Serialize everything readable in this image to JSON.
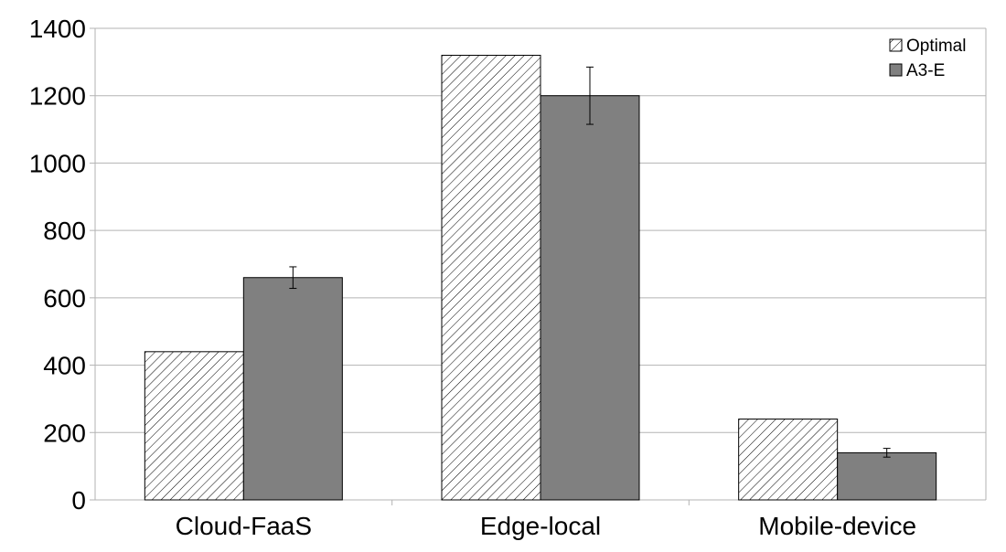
{
  "chart_data": {
    "type": "bar",
    "categories": [
      "Cloud-FaaS",
      "Edge-local",
      "Mobile-device"
    ],
    "series": [
      {
        "name": "Optimal",
        "values": [
          440,
          1320,
          240
        ],
        "pattern": "hatched",
        "color": "#ffffff"
      },
      {
        "name": "A3-E",
        "values": [
          660,
          1200,
          140
        ],
        "errors": [
          32,
          85,
          13
        ],
        "pattern": "solid",
        "color": "#808080"
      }
    ],
    "ylim": [
      0,
      1400
    ],
    "yticks": [
      "0",
      "200",
      "400",
      "600",
      "800",
      "1000",
      "1200",
      "1400"
    ],
    "grid": true,
    "legend_position": "top-right",
    "title": "",
    "xlabel": "",
    "ylabel": ""
  }
}
